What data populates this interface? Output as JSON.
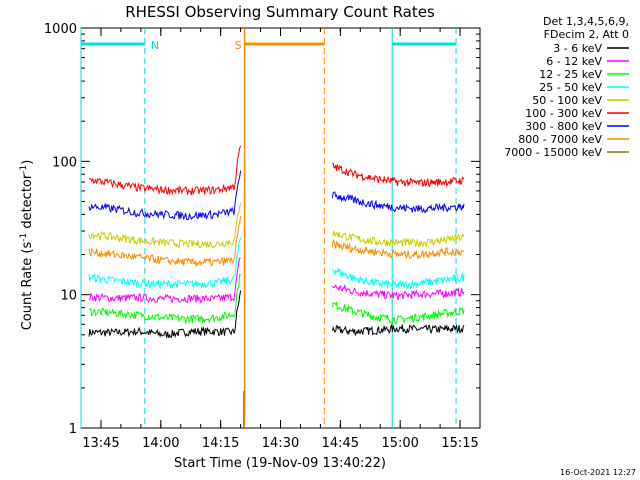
{
  "chart_data": {
    "type": "line",
    "title": "RHESSI Observing Summary Count Rates",
    "xlabel": "Start Time (19-Nov-09 13:40:22)",
    "ylabel_main": "Count Rate (s",
    "ylabel_sup1": "-1",
    "ylabel_mid": " detector",
    "ylabel_sup2": "-1",
    "ylabel_end": ")",
    "yscale": "log",
    "ylim": [
      1,
      1000
    ],
    "xlim": [
      "13:40",
      "15:20"
    ],
    "x_ticks": [
      "13:45",
      "14:00",
      "14:15",
      "14:30",
      "14:45",
      "15:00",
      "15:15"
    ],
    "y_ticks": [
      "1",
      "10",
      "100",
      "1000"
    ],
    "grid": false,
    "legend_header": [
      "Det 1,3,4,5,6,9,",
      "FDecim 2, Att 0"
    ],
    "legend_placement": "right",
    "markers": [
      {
        "label": "N",
        "color": "#00e0e0",
        "start": "13:40",
        "end": "13:56"
      },
      {
        "label": "S",
        "color": "#ff8c00",
        "start": "14:21",
        "end": "14:41"
      },
      {
        "label": "",
        "color": "#00e0e0",
        "start": "14:58",
        "end": "15:14"
      }
    ],
    "night_lines": [
      "13:56",
      "15:14"
    ],
    "day_lines": [
      "13:40",
      "14:58"
    ],
    "saa_lines": [
      "14:21",
      "14:41"
    ],
    "gap": [
      "14:21",
      "14:43"
    ],
    "series": [
      {
        "name": "3 - 6 keV",
        "color": "#000000",
        "before": [
          5.2,
          5.2,
          5.3,
          5.0,
          5.3,
          5.3,
          5.2
        ],
        "after": [
          5.5,
          5.3,
          5.4,
          5.6,
          5.5,
          5.5,
          5.6
        ]
      },
      {
        "name": "6 - 12 keV",
        "color": "#ff00ff",
        "before": [
          9.6,
          9.4,
          9.5,
          9.3,
          9.4,
          9.3,
          9.8
        ],
        "after": [
          11.5,
          10.6,
          10.1,
          9.8,
          10.1,
          10.2,
          10.5
        ]
      },
      {
        "name": "12 - 25 keV",
        "color": "#00ff00",
        "before": [
          7.5,
          7.3,
          7.0,
          6.7,
          6.6,
          6.7,
          7.3
        ],
        "after": [
          8.5,
          7.5,
          6.8,
          6.5,
          6.8,
          7.2,
          7.6
        ]
      },
      {
        "name": "25 - 50 keV",
        "color": "#00ffff",
        "before": [
          13.5,
          12.8,
          12.2,
          12.0,
          12.0,
          12.2,
          13.5
        ],
        "after": [
          15.5,
          13.2,
          12.2,
          11.8,
          12.2,
          12.8,
          13.5
        ]
      },
      {
        "name": "50 - 100 keV",
        "color": "#cccc00",
        "before": [
          28.5,
          27.0,
          25.5,
          24.5,
          24.0,
          24.0,
          25.5
        ],
        "after": [
          29.0,
          26.5,
          25.0,
          24.5,
          24.5,
          25.5,
          27.0
        ]
      },
      {
        "name": "100 - 300 keV",
        "color": "#ff0000",
        "before": [
          73,
          68,
          63,
          61,
          60,
          61,
          66
        ],
        "after": [
          92,
          80,
          74,
          70,
          69,
          70,
          72
        ]
      },
      {
        "name": "300 - 800 keV",
        "color": "#0000ff",
        "before": [
          46,
          44,
          41,
          40,
          39,
          40,
          43
        ],
        "after": [
          56,
          51,
          47,
          45,
          44,
          45,
          46
        ]
      },
      {
        "name": "800 - 7000 keV",
        "color": "#ff8c00",
        "before": [
          21,
          20,
          19,
          18,
          17.5,
          17.5,
          18.5
        ],
        "after": [
          24,
          22,
          21,
          20,
          20,
          21,
          21
        ]
      },
      {
        "name": "7000 - 15000 keV",
        "color": "#808000",
        "before": [],
        "after": []
      }
    ],
    "footer_date": "16-Oct-2021 12:27"
  }
}
